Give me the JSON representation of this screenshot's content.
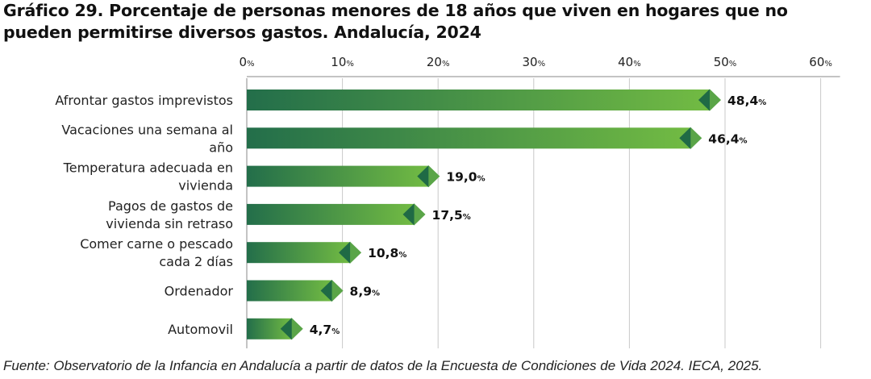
{
  "title": {
    "line1": "Gráfico 29. Porcentaje de personas menores de 18 años que viven en hogares que no",
    "line2": "pueden permitirse diversos gastos. Andalucía, 2024"
  },
  "source": "Fuente: Observatorio de la Infancia en Andalucía a partir de datos de la Encuesta de Condiciones de Vida 2024. IECA, 2025.",
  "chart_data": {
    "type": "bar",
    "orientation": "horizontal",
    "title": "Gráfico 29. Porcentaje de personas menores de 18 años que viven en hogares que no pueden permitirse diversos gastos. Andalucía, 2024",
    "categories": [
      [
        "Afrontar gastos imprevistos"
      ],
      [
        "Vacaciones una semana al",
        "año"
      ],
      [
        "Temperatura adecuada en",
        "vivienda"
      ],
      [
        "Pagos de gastos de",
        "vivienda sin retraso"
      ],
      [
        "Comer carne o pescado",
        "cada 2 días"
      ],
      [
        "Ordenador"
      ],
      [
        "Automovil"
      ]
    ],
    "values": [
      48.4,
      46.4,
      19.0,
      17.5,
      10.8,
      8.9,
      4.7
    ],
    "value_labels": [
      "48,4",
      "46,4",
      "19,0",
      "17,5",
      "10,8",
      "8,9",
      "4,7"
    ],
    "unit": "%",
    "xlim": [
      0,
      60
    ],
    "xticks": [
      0,
      10,
      20,
      30,
      40,
      50,
      60
    ],
    "xtick_labels": [
      "0",
      "10",
      "20",
      "30",
      "40",
      "50",
      "60"
    ],
    "axis_position": "top",
    "grid": true,
    "colors": {
      "bar_start": "#236e4a",
      "bar_end": "#72bb43",
      "marker_dark": "#1f6a45",
      "marker_light": "#5aa548",
      "grid": "#c8c8c8",
      "axis": "#888888"
    }
  }
}
